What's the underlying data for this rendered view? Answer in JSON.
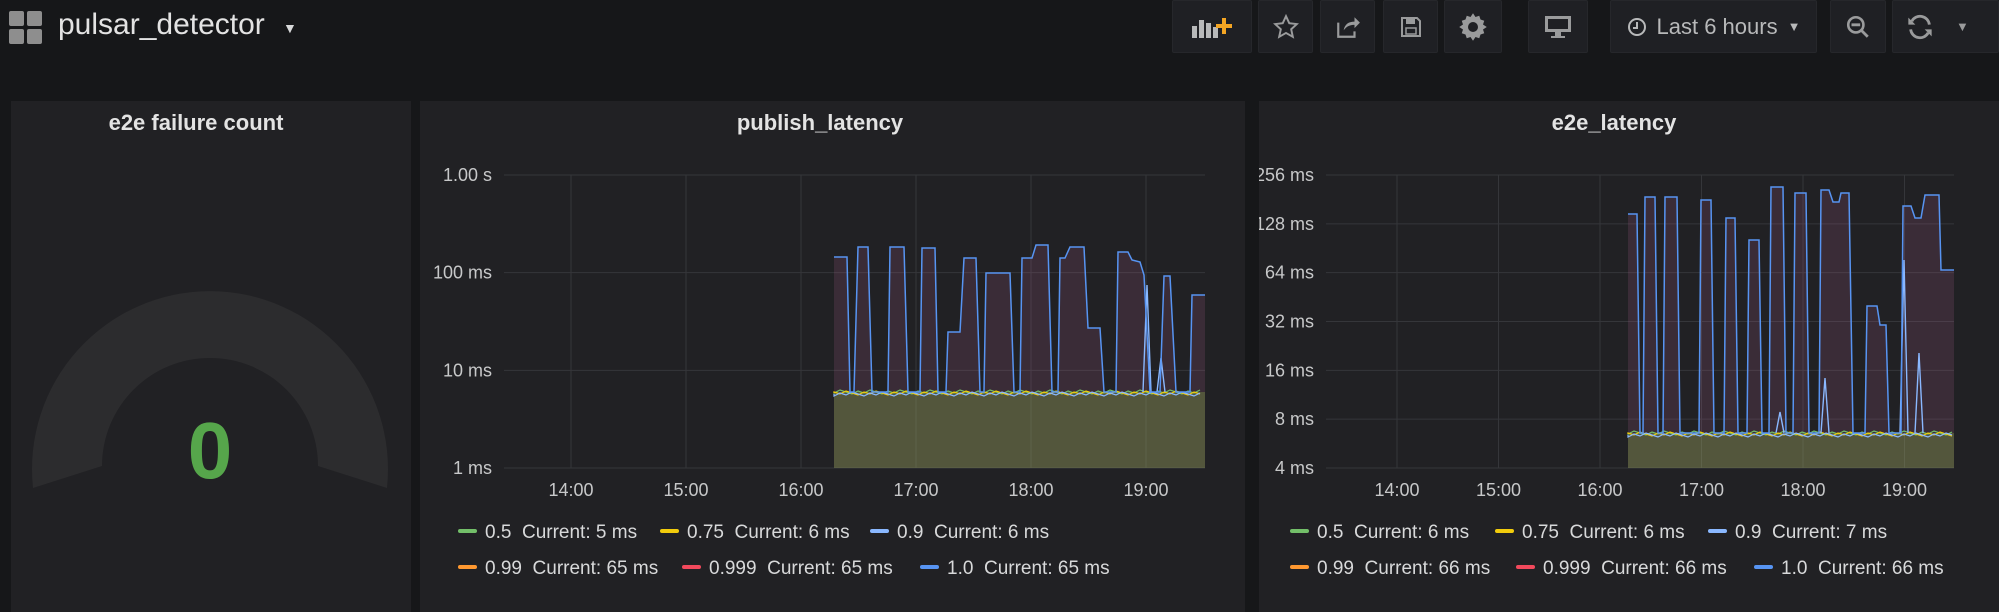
{
  "dashboard": {
    "title": "pulsar_detector"
  },
  "toolbar": {
    "time_range": "Last 6 hours"
  },
  "panels": {
    "failure": {
      "title": "e2e failure count",
      "value": "0",
      "value_color": "#56a64b"
    },
    "publish": {
      "title": "publish_latency",
      "y_ticks": [
        "1.00 s",
        "100 ms",
        "10 ms",
        "1 ms"
      ],
      "x_ticks": [
        "14:00",
        "15:00",
        "16:00",
        "17:00",
        "18:00",
        "19:00"
      ],
      "legend": [
        {
          "name": "0.5",
          "current": "Current: 5 ms",
          "color": "#73bf69"
        },
        {
          "name": "0.75",
          "current": "Current: 6 ms",
          "color": "#f2cc0c"
        },
        {
          "name": "0.9",
          "current": "Current: 6 ms",
          "color": "#8ab8ff"
        },
        {
          "name": "0.99",
          "current": "Current: 65 ms",
          "color": "#ff9830"
        },
        {
          "name": "0.999",
          "current": "Current: 65 ms",
          "color": "#f2495c"
        },
        {
          "name": "1.0",
          "current": "Current: 65 ms",
          "color": "#5794f2"
        }
      ]
    },
    "e2e": {
      "title": "e2e_latency",
      "y_ticks": [
        "256 ms",
        "128 ms",
        "64 ms",
        "32 ms",
        "16 ms",
        "8 ms",
        "4 ms"
      ],
      "x_ticks": [
        "14:00",
        "15:00",
        "16:00",
        "17:00",
        "18:00",
        "19:00"
      ],
      "legend": [
        {
          "name": "0.5",
          "current": "Current: 6 ms",
          "color": "#73bf69"
        },
        {
          "name": "0.75",
          "current": "Current: 6 ms",
          "color": "#f2cc0c"
        },
        {
          "name": "0.9",
          "current": "Current: 7 ms",
          "color": "#8ab8ff"
        },
        {
          "name": "0.99",
          "current": "Current: 66 ms",
          "color": "#ff9830"
        },
        {
          "name": "0.999",
          "current": "Current: 66 ms",
          "color": "#f2495c"
        },
        {
          "name": "1.0",
          "current": "Current: 66 ms",
          "color": "#5794f2"
        }
      ]
    }
  },
  "chart_data": [
    {
      "type": "line",
      "title": "publish_latency",
      "y_scale": "log10",
      "ylim": [
        "1 ms",
        "1.00 s"
      ],
      "x_ticks": [
        "14:00",
        "15:00",
        "16:00",
        "17:00",
        "18:00",
        "19:00"
      ],
      "data_start": "16:17",
      "series": [
        {
          "name": "0.5",
          "current_ms": 5
        },
        {
          "name": "0.75",
          "current_ms": 6
        },
        {
          "name": "0.9",
          "current_ms": 6
        },
        {
          "name": "0.99",
          "current_ms": 65
        },
        {
          "name": "0.999",
          "current_ms": 65
        },
        {
          "name": "1.0",
          "current_ms": 65
        }
      ]
    },
    {
      "type": "line",
      "title": "e2e_latency",
      "y_scale": "log2",
      "ylim": [
        "4 ms",
        "256 ms"
      ],
      "x_ticks": [
        "14:00",
        "15:00",
        "16:00",
        "17:00",
        "18:00",
        "19:00"
      ],
      "data_start": "16:17",
      "series": [
        {
          "name": "0.5",
          "current_ms": 6
        },
        {
          "name": "0.75",
          "current_ms": 6
        },
        {
          "name": "0.9",
          "current_ms": 7
        },
        {
          "name": "0.99",
          "current_ms": 66
        },
        {
          "name": "0.999",
          "current_ms": 66
        },
        {
          "name": "1.0",
          "current_ms": 66
        }
      ]
    }
  ]
}
